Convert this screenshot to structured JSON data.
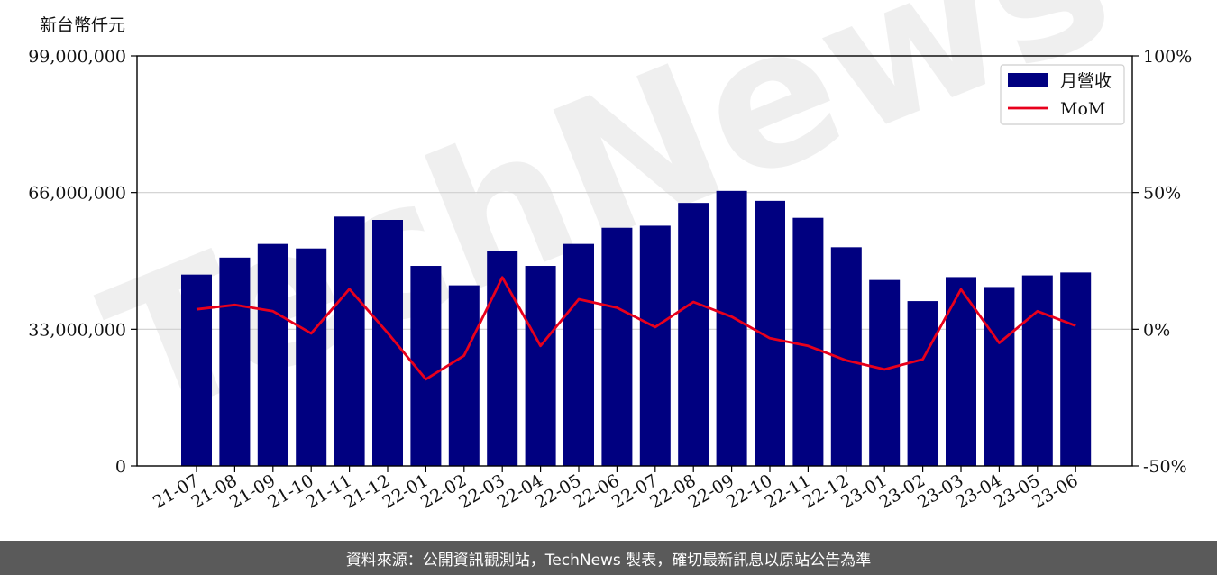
{
  "chart_data": {
    "type": "bar",
    "ylabel": "新台幣仟元",
    "categories": [
      "21-07",
      "21-08",
      "21-09",
      "21-10",
      "21-11",
      "21-12",
      "22-01",
      "22-02",
      "22-03",
      "22-04",
      "22-05",
      "22-06",
      "22-07",
      "22-08",
      "22-09",
      "22-10",
      "22-11",
      "22-12",
      "23-01",
      "23-02",
      "23-03",
      "23-04",
      "23-05",
      "23-06"
    ],
    "series": [
      {
        "name": "月營收",
        "type": "bar",
        "axis": "left",
        "color": "#000080",
        "values": [
          46200000,
          50300000,
          53600000,
          52500000,
          60200000,
          59400000,
          48300000,
          43600000,
          51900000,
          48300000,
          53600000,
          57500000,
          58000000,
          63500000,
          66400000,
          64000000,
          59900000,
          52800000,
          44900000,
          39800000,
          45600000,
          43200000,
          46000000,
          46700000
        ]
      },
      {
        "name": "MoM",
        "type": "line",
        "axis": "right",
        "color": "#e8001c",
        "values": [
          7.3,
          8.9,
          6.6,
          -1.5,
          14.7,
          -1.3,
          -18.3,
          -9.6,
          19.0,
          -6.1,
          11.0,
          7.9,
          0.8,
          10.0,
          4.6,
          -3.3,
          -6.1,
          -11.4,
          -14.7,
          -11.0,
          14.6,
          -5.0,
          6.6,
          1.3
        ]
      }
    ],
    "left_axis": {
      "ylim": [
        0,
        99000000
      ],
      "ticks": [
        "0",
        "33,000,000",
        "66,000,000",
        "99,000,000"
      ]
    },
    "right_axis": {
      "ylim": [
        -50,
        100
      ],
      "ticks": [
        "-50%",
        "0%",
        "50%",
        "100%"
      ]
    },
    "grid": "horizontal",
    "legend": {
      "placement": "top-right",
      "entries": [
        "月營收",
        "MoM"
      ]
    },
    "watermark": "TechNews"
  },
  "footer": {
    "source_text": "資料來源：公開資訊觀測站，TechNews 製表，確切最新訊息以原站公告為準"
  }
}
